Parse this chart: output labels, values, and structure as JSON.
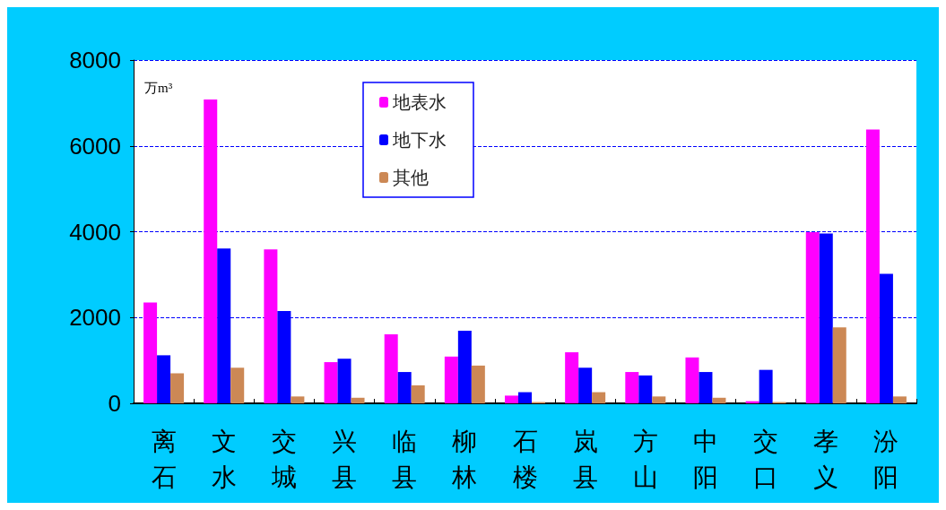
{
  "chart_data": {
    "type": "bar",
    "ylabel": "万m³",
    "categories": [
      "离石",
      "文水",
      "交城",
      "兴县",
      "临县",
      "柳林",
      "石楼",
      "岚县",
      "方山",
      "中阳",
      "交口",
      "孝义",
      "汾阳"
    ],
    "series": [
      {
        "name": "地表水",
        "color": "#ff00ff",
        "values": [
          2350,
          7080,
          3590,
          960,
          1610,
          1090,
          180,
          1190,
          730,
          1070,
          50,
          3990,
          6380
        ]
      },
      {
        "name": "地下水",
        "color": "#0000ff",
        "values": [
          1120,
          3610,
          2150,
          1040,
          730,
          1690,
          260,
          830,
          650,
          730,
          780,
          3960,
          3020
        ]
      },
      {
        "name": "其他",
        "color": "#cc8855",
        "values": [
          700,
          830,
          160,
          130,
          420,
          880,
          30,
          260,
          160,
          130,
          30,
          1770,
          160
        ]
      }
    ],
    "ylim": [
      0,
      8000
    ],
    "yticks": [
      0,
      2000,
      4000,
      6000,
      8000
    ],
    "grid": "y",
    "legend": "top"
  }
}
